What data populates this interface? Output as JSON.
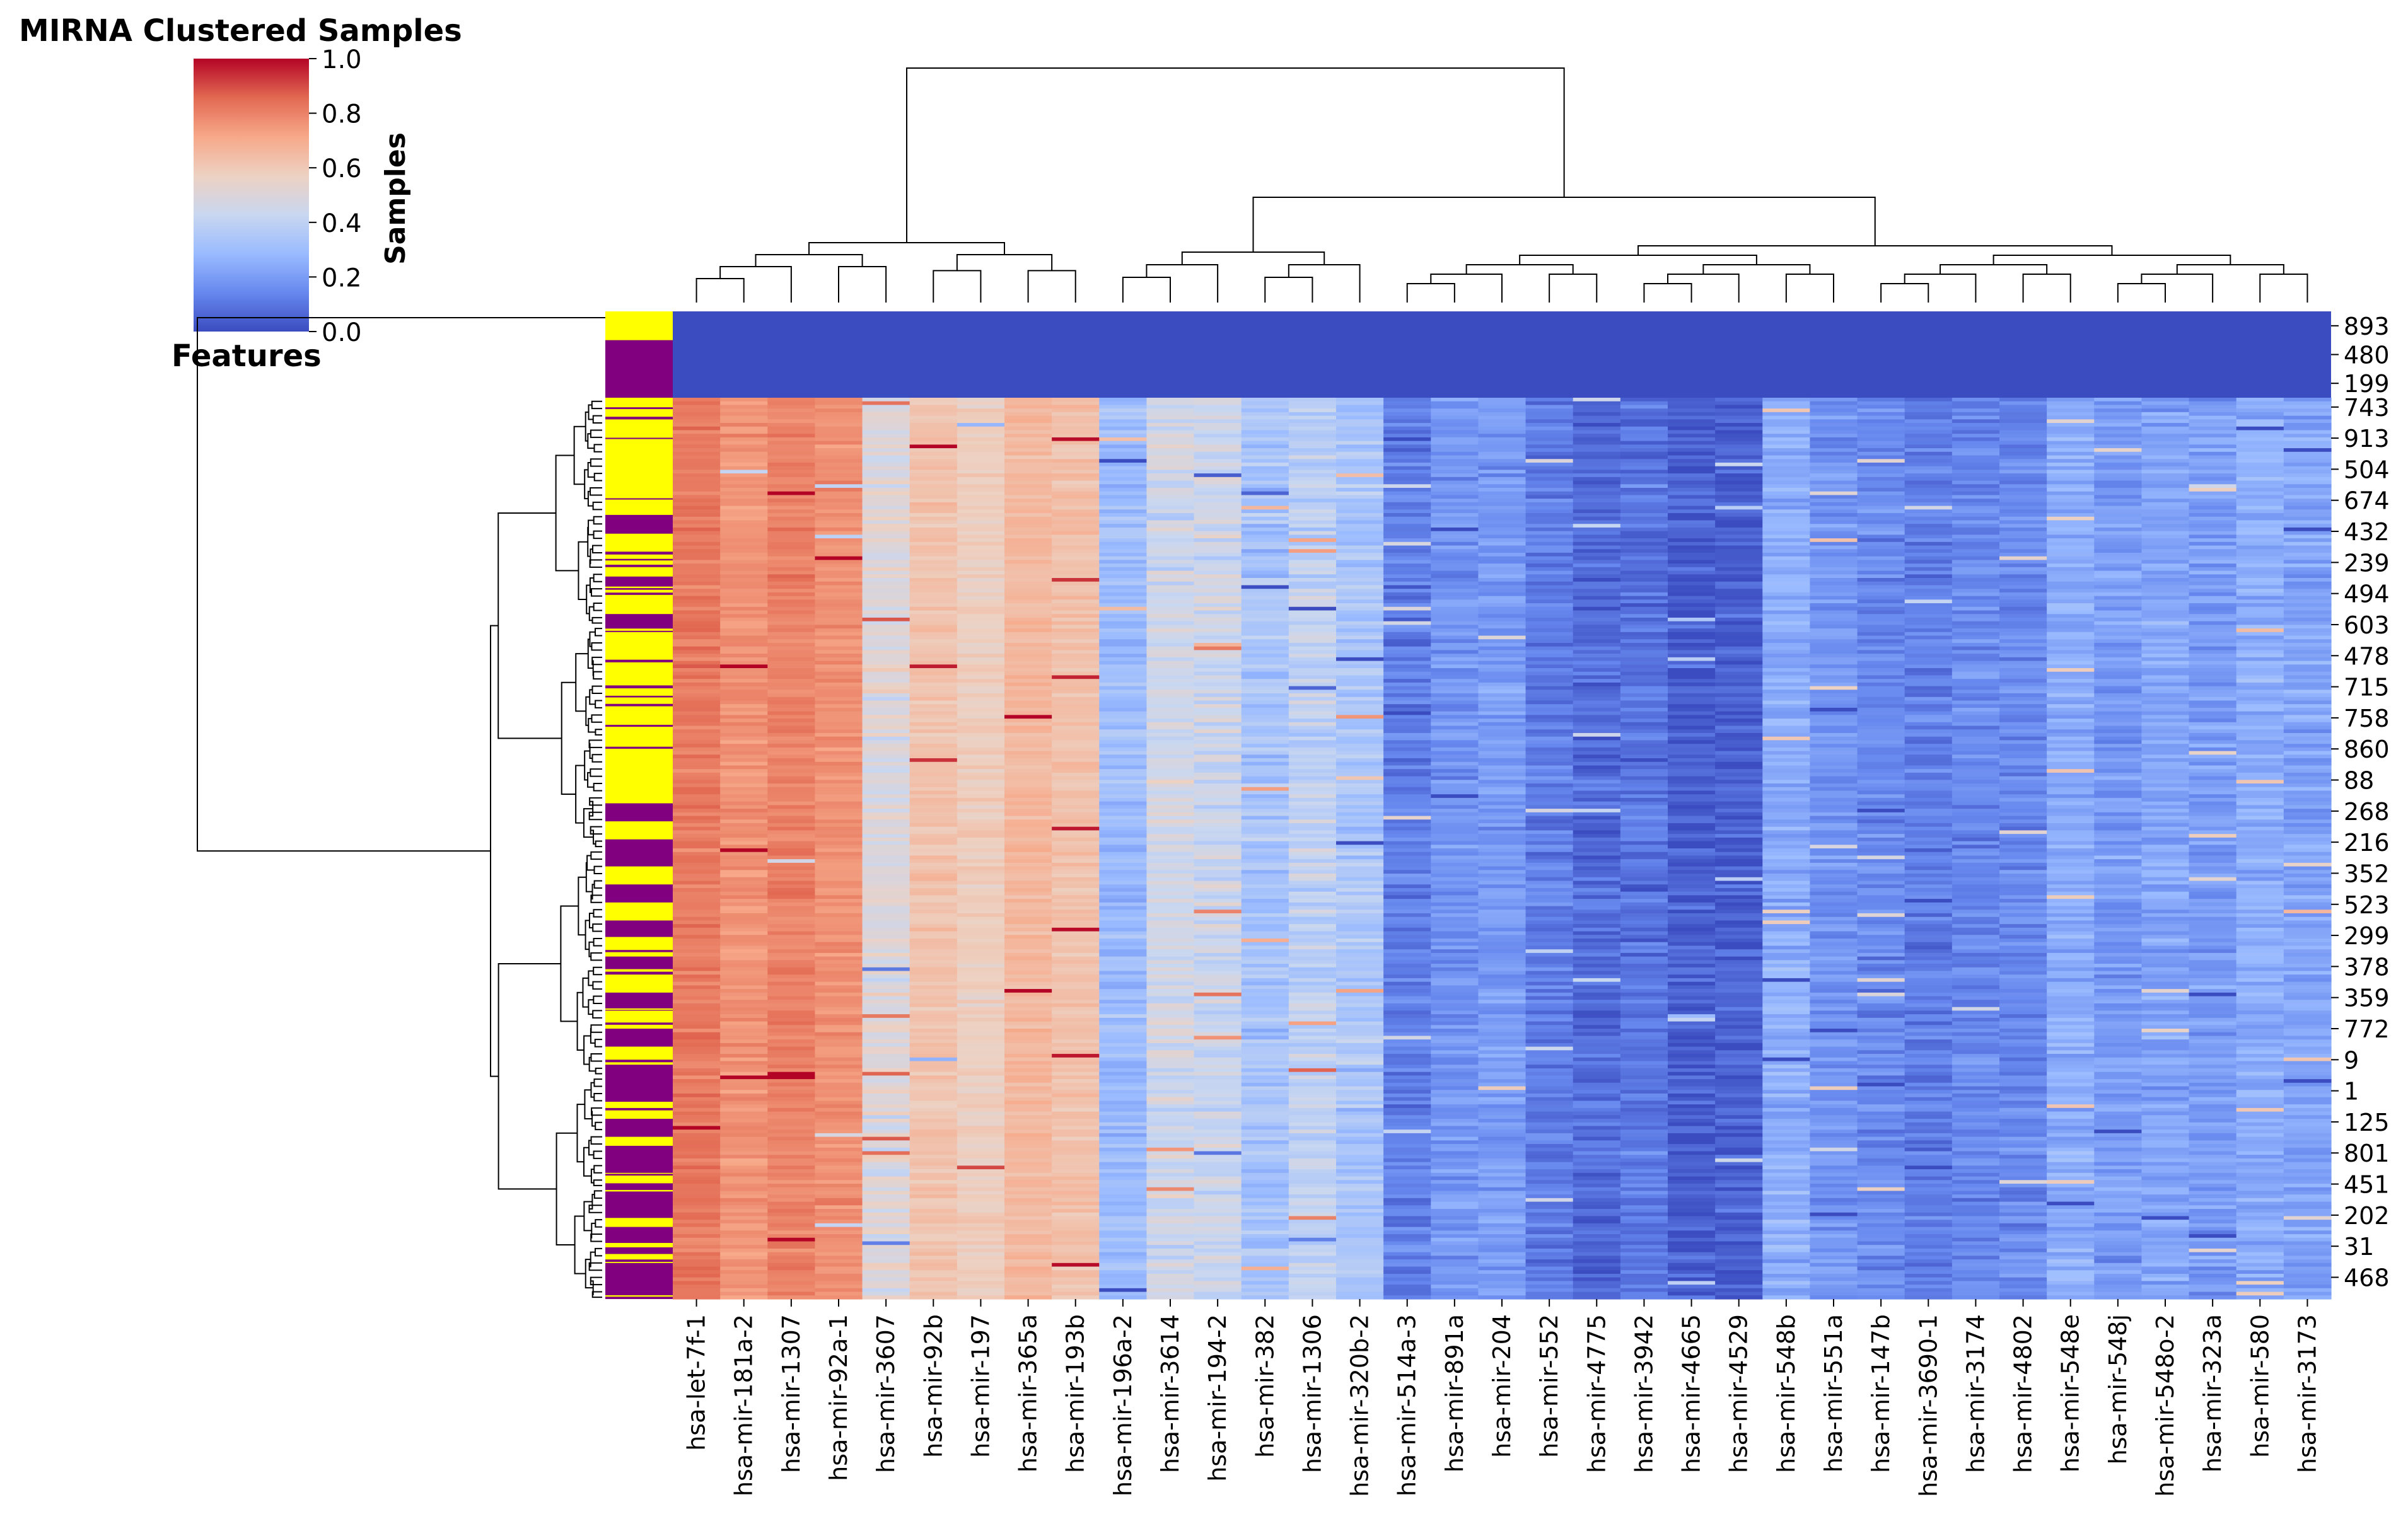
{
  "chart_data": {
    "type": "heatmap",
    "subtype": "clustermap",
    "title": "MIRNA Clustered Samples",
    "colorbar": {
      "ylabel": "Samples",
      "colormap": "coolwarm",
      "range": [
        0,
        1
      ],
      "ticks": [
        "0.0",
        "0.2",
        "0.4",
        "0.6",
        "0.8",
        "1.0"
      ],
      "colors": [
        "#3b4cc0",
        "#6788ee",
        "#9abbff",
        "#c9d7f0",
        "#edd1c2",
        "#f7a889",
        "#e26952",
        "#b40426"
      ]
    },
    "row_color_label": "Features",
    "row_color_palette": {
      "class_a": "#ffff00",
      "class_b": "#800080"
    },
    "top_rows": {
      "labels": [
        "893",
        "480",
        "199"
      ],
      "colors": [
        "#ffff00",
        "#800080",
        "#800080"
      ],
      "value": 0.0
    },
    "columns": [
      "hsa-let-7f-1",
      "hsa-mir-181a-2",
      "hsa-mir-1307",
      "hsa-mir-92a-1",
      "hsa-mir-3607",
      "hsa-mir-92b",
      "hsa-mir-197",
      "hsa-mir-365a",
      "hsa-mir-193b",
      "hsa-mir-196a-2",
      "hsa-mir-3614",
      "hsa-mir-194-2",
      "hsa-mir-382",
      "hsa-mir-1306",
      "hsa-mir-320b-2",
      "hsa-mir-514a-3",
      "hsa-mir-891a",
      "hsa-mir-204",
      "hsa-mir-552",
      "hsa-mir-4775",
      "hsa-mir-3942",
      "hsa-mir-4665",
      "hsa-mir-4529",
      "hsa-mir-548b",
      "hsa-mir-551a",
      "hsa-mir-147b",
      "hsa-mir-3690-1",
      "hsa-mir-3174",
      "hsa-mir-4802",
      "hsa-mir-548e",
      "hsa-mir-548j",
      "hsa-mir-548o-2",
      "hsa-mir-323a",
      "hsa-mir-580",
      "hsa-mir-3173"
    ],
    "column_mean_values": [
      0.82,
      0.76,
      0.8,
      0.77,
      0.5,
      0.62,
      0.58,
      0.66,
      0.63,
      0.3,
      0.45,
      0.44,
      0.33,
      0.4,
      0.34,
      0.12,
      0.18,
      0.2,
      0.12,
      0.08,
      0.1,
      0.04,
      0.05,
      0.25,
      0.18,
      0.15,
      0.12,
      0.15,
      0.15,
      0.25,
      0.2,
      0.22,
      0.2,
      0.25,
      0.22
    ],
    "row_tick_labels": [
      "743",
      "913",
      "504",
      "674",
      "432",
      "239",
      "494",
      "603",
      "478",
      "715",
      "758",
      "860",
      "88",
      "268",
      "216",
      "352",
      "523",
      "299",
      "378",
      "359",
      "772",
      "9",
      "1",
      "125",
      "801",
      "451",
      "202",
      "31",
      "468"
    ],
    "row_count_approx": 250,
    "feature_bands_purple": [
      [
        0.13,
        0.15
      ],
      [
        0.2,
        0.22
      ],
      [
        0.24,
        0.26
      ],
      [
        0.45,
        0.47
      ],
      [
        0.49,
        0.52
      ],
      [
        0.54,
        0.56
      ],
      [
        0.58,
        0.6
      ],
      [
        0.62,
        0.64
      ],
      [
        0.66,
        0.68
      ],
      [
        0.7,
        0.72
      ],
      [
        0.74,
        0.78
      ],
      [
        0.8,
        0.82
      ],
      [
        0.83,
        0.86
      ],
      [
        0.87,
        0.91
      ],
      [
        0.92,
        0.95
      ],
      [
        0.96,
        1.0
      ]
    ],
    "seed": 7
  }
}
